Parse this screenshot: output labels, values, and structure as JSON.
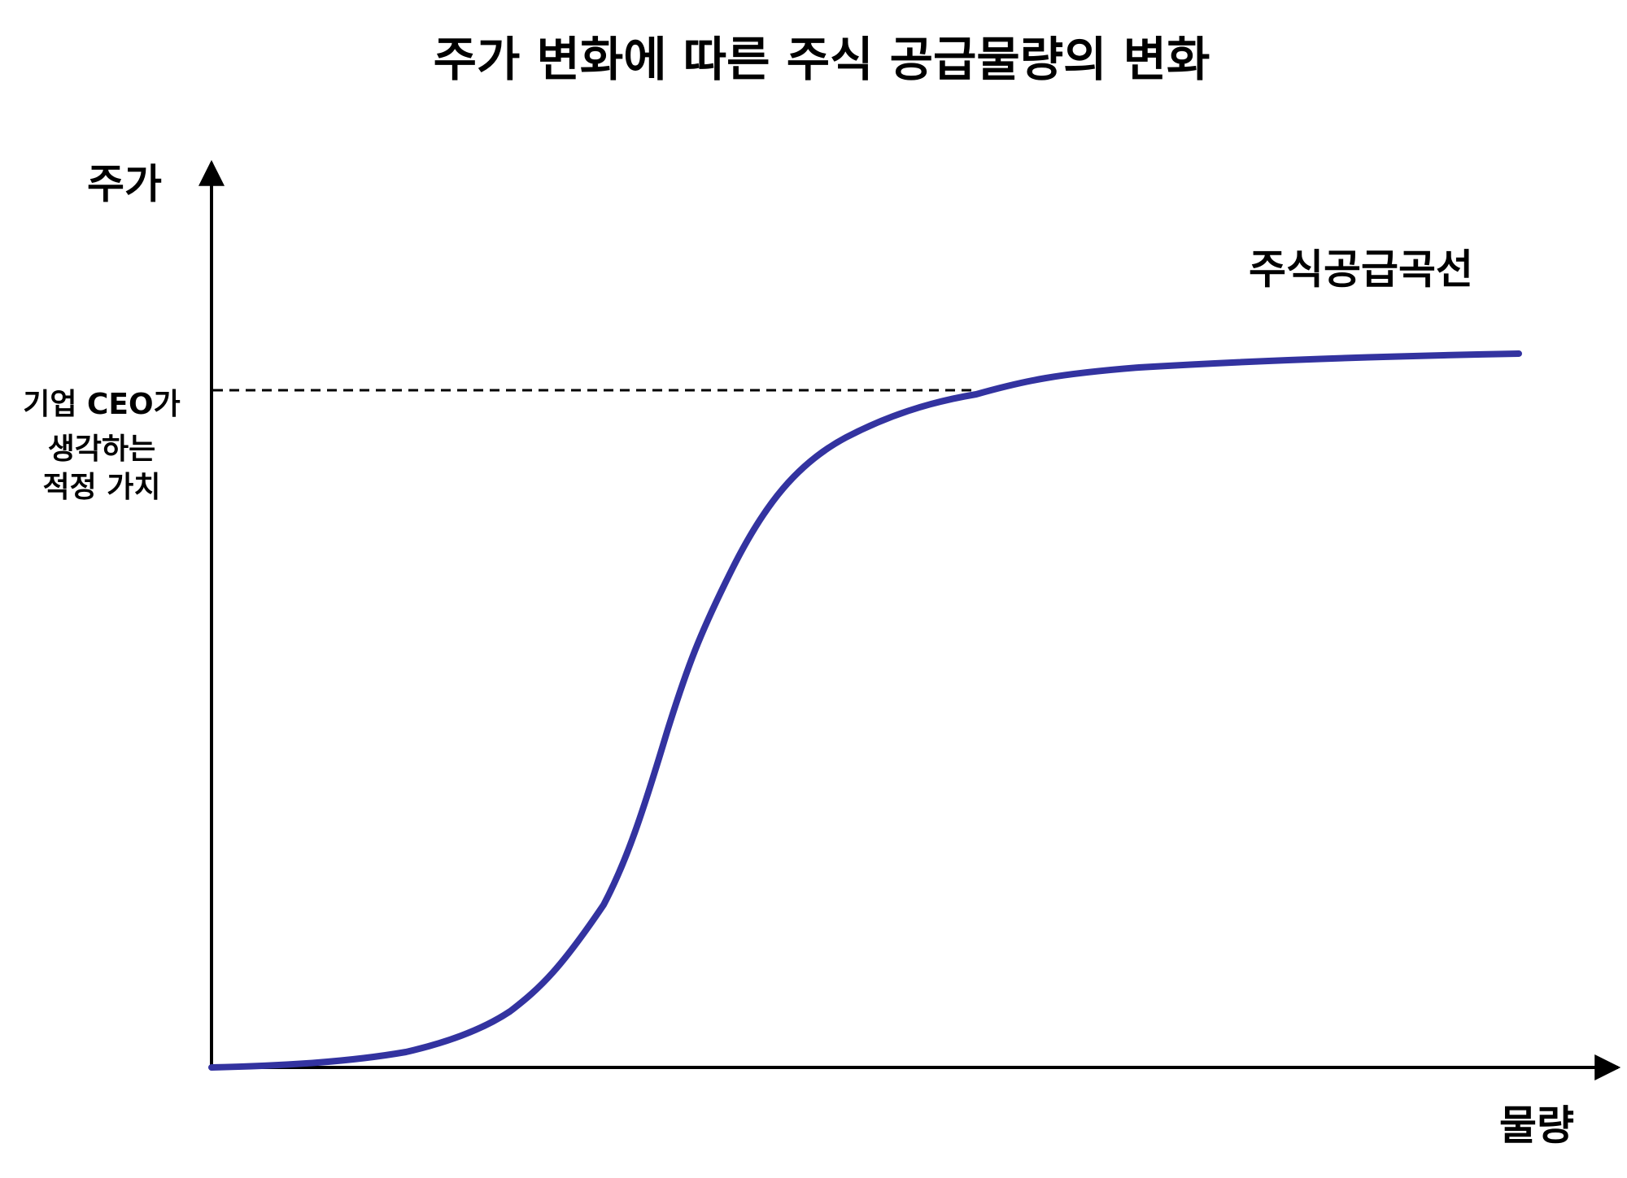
{
  "title": "주가 변화에 따른 주식 공급물량의 변화",
  "y_axis_label": "주가",
  "x_axis_label": "물량",
  "curve_label": "주식공급곡선",
  "reference_label": [
    "기업 CEO가",
    "생각하는",
    "적정 가치"
  ]
}
